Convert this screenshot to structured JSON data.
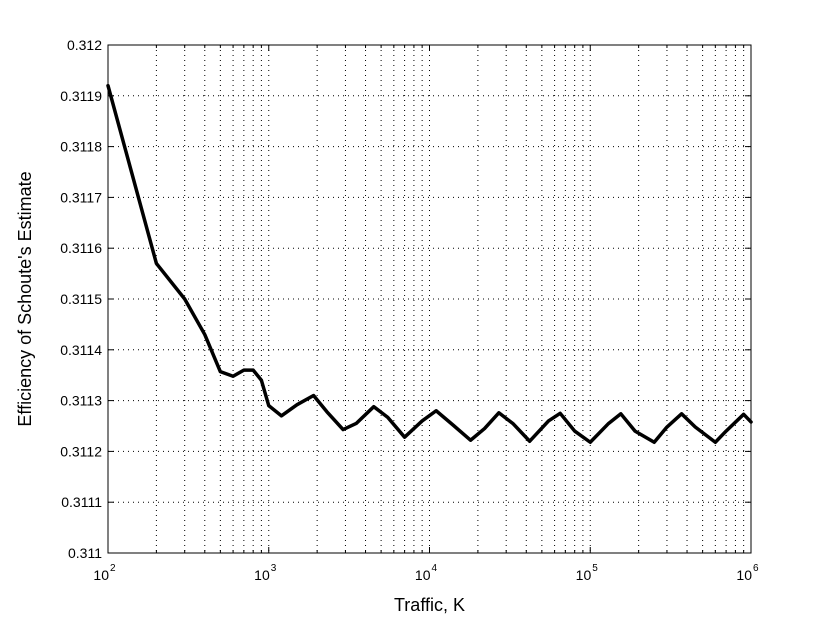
{
  "chart_data": {
    "type": "line",
    "title": "",
    "xlabel": "Traffic, K",
    "ylabel": "Efficiency of Schoute's Estimate",
    "xscale": "log",
    "xlim": [
      100,
      1000000
    ],
    "ylim": [
      0.311,
      0.312
    ],
    "grid": true,
    "x_ticks": [
      {
        "base": "10",
        "exp": "2"
      },
      {
        "base": "10",
        "exp": "3"
      },
      {
        "base": "10",
        "exp": "4"
      },
      {
        "base": "10",
        "exp": "5"
      },
      {
        "base": "10",
        "exp": "6"
      }
    ],
    "y_ticks": [
      "0.311",
      "0.3111",
      "0.3112",
      "0.3113",
      "0.3114",
      "0.3115",
      "0.3116",
      "0.3117",
      "0.3118",
      "0.3119",
      "0.312"
    ],
    "series": [
      {
        "color": "#000000",
        "x": [
          100,
          200,
          300,
          400,
          500,
          600,
          700,
          800,
          900,
          1000,
          1200,
          1500,
          1900,
          2300,
          2900,
          3500,
          4500,
          5500,
          7000,
          9000,
          11000,
          14000,
          18000,
          22000,
          27000,
          33000,
          42000,
          55000,
          65000,
          80000,
          100000,
          130000,
          155000,
          190000,
          250000,
          300000,
          370000,
          450000,
          600000,
          700000,
          900000,
          1000000
        ],
        "y": [
          0.31192,
          0.31157,
          0.3115,
          0.31143,
          0.311357,
          0.311348,
          0.31136,
          0.31136,
          0.31134,
          0.31129,
          0.31127,
          0.311292,
          0.31131,
          0.311278,
          0.311243,
          0.311255,
          0.311288,
          0.311267,
          0.311228,
          0.31126,
          0.31128,
          0.311252,
          0.311222,
          0.311245,
          0.311276,
          0.311255,
          0.31122,
          0.31126,
          0.311275,
          0.31124,
          0.311218,
          0.311255,
          0.311274,
          0.31124,
          0.311218,
          0.311248,
          0.311274,
          0.311248,
          0.311218,
          0.31124,
          0.311273,
          0.311258
        ]
      }
    ]
  }
}
